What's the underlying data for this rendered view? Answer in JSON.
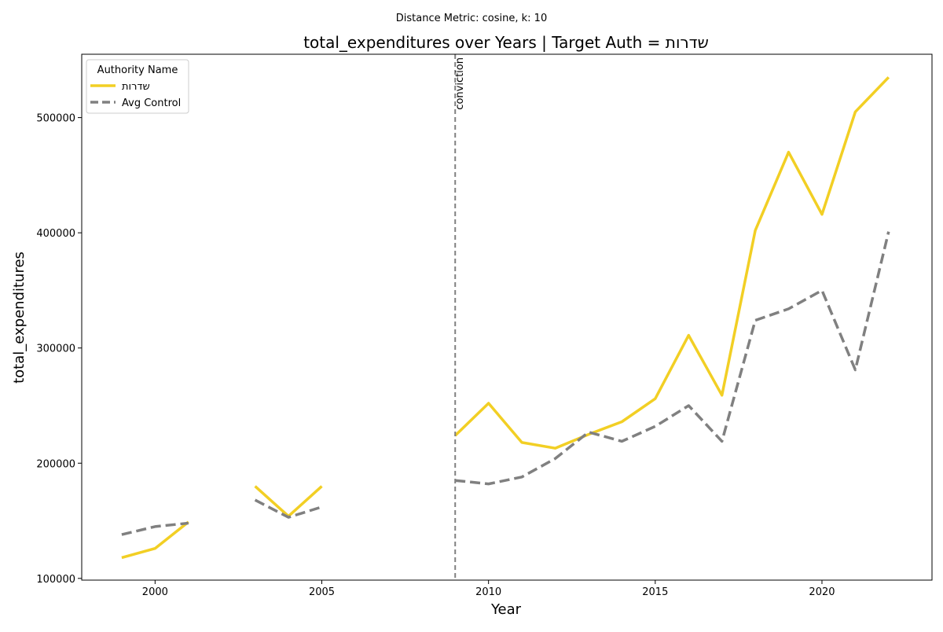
{
  "chart_data": {
    "type": "line",
    "suptitle": "Distance Metric: cosine, k: 10",
    "title": "total_expenditures over Years | Target Auth = שדרות",
    "xlabel": "Year",
    "ylabel": "total_expenditures",
    "xlim": [
      1997.8,
      2023.3
    ],
    "ylim": [
      98500,
      555000
    ],
    "x_ticks": [
      2000,
      2005,
      2010,
      2015,
      2020
    ],
    "y_ticks": [
      100000,
      200000,
      300000,
      400000,
      500000
    ],
    "legend": {
      "title": "Authority Name",
      "position": "top-left"
    },
    "annotation": {
      "label": "conviction",
      "x": 2009
    },
    "series": [
      {
        "name": "שדרות",
        "color": "#f2cf24",
        "style": "solid",
        "points": [
          [
            1999,
            118000
          ],
          [
            2000,
            126000
          ],
          [
            2001,
            149000
          ],
          [
            2003,
            180000
          ],
          [
            2004,
            154000
          ],
          [
            2005,
            180000
          ],
          [
            2009,
            224000
          ],
          [
            2010,
            252000
          ],
          [
            2011,
            218000
          ],
          [
            2012,
            213000
          ],
          [
            2013,
            225000
          ],
          [
            2014,
            236000
          ],
          [
            2015,
            256000
          ],
          [
            2016,
            311000
          ],
          [
            2017,
            259000
          ],
          [
            2018,
            402000
          ],
          [
            2019,
            470000
          ],
          [
            2020,
            416000
          ],
          [
            2021,
            505000
          ],
          [
            2022,
            535000
          ]
        ],
        "segments": [
          [
            0,
            2
          ],
          [
            3,
            5
          ],
          [
            6,
            19
          ]
        ]
      },
      {
        "name": "Avg Control",
        "color": "#808080",
        "style": "dashed",
        "points": [
          [
            1999,
            138000
          ],
          [
            2000,
            145000
          ],
          [
            2001,
            148000
          ],
          [
            2003,
            168000
          ],
          [
            2004,
            153000
          ],
          [
            2005,
            162000
          ],
          [
            2009,
            185000
          ],
          [
            2010,
            182000
          ],
          [
            2011,
            188000
          ],
          [
            2012,
            204000
          ],
          [
            2013,
            227000
          ],
          [
            2014,
            219000
          ],
          [
            2015,
            232000
          ],
          [
            2016,
            250000
          ],
          [
            2017,
            219000
          ],
          [
            2018,
            324000
          ],
          [
            2019,
            334000
          ],
          [
            2020,
            350000
          ],
          [
            2021,
            281000
          ],
          [
            2022,
            401000
          ]
        ],
        "segments": [
          [
            0,
            2
          ],
          [
            3,
            5
          ],
          [
            6,
            19
          ]
        ]
      }
    ]
  }
}
